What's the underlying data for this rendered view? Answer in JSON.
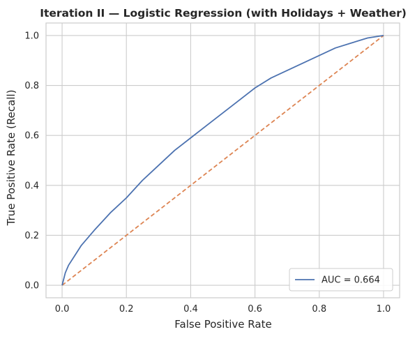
{
  "chart_data": {
    "type": "line",
    "title": "Iteration II — Logistic Regression (with Holidays + Weather)",
    "xlabel": "False Positive Rate",
    "ylabel": "True Positive Rate (Recall)",
    "xlim": [
      -0.05,
      1.05
    ],
    "ylim": [
      -0.05,
      1.05
    ],
    "xticks": [
      0.0,
      0.2,
      0.4,
      0.6,
      0.8,
      1.0
    ],
    "yticks": [
      0.0,
      0.2,
      0.4,
      0.6,
      0.8,
      1.0
    ],
    "xtick_labels": [
      "0.0",
      "0.2",
      "0.4",
      "0.6",
      "0.8",
      "1.0"
    ],
    "ytick_labels": [
      "0.0",
      "0.2",
      "0.4",
      "0.6",
      "0.8",
      "1.0"
    ],
    "grid": true,
    "legend_position": "lower-right",
    "series": [
      {
        "name": "AUC = 0.664",
        "color": "#4c72b0",
        "style": "solid",
        "x": [
          0.0,
          0.01,
          0.02,
          0.04,
          0.06,
          0.08,
          0.1,
          0.15,
          0.2,
          0.25,
          0.3,
          0.35,
          0.4,
          0.45,
          0.5,
          0.55,
          0.6,
          0.65,
          0.7,
          0.75,
          0.8,
          0.85,
          0.9,
          0.95,
          1.0
        ],
        "y": [
          0.0,
          0.05,
          0.08,
          0.12,
          0.16,
          0.19,
          0.22,
          0.29,
          0.35,
          0.42,
          0.48,
          0.54,
          0.59,
          0.64,
          0.69,
          0.74,
          0.79,
          0.83,
          0.86,
          0.89,
          0.92,
          0.95,
          0.97,
          0.99,
          1.0
        ]
      },
      {
        "name": "",
        "color": "#dd8452",
        "style": "dashed",
        "x": [
          0.0,
          1.0
        ],
        "y": [
          0.0,
          1.0
        ]
      }
    ]
  }
}
